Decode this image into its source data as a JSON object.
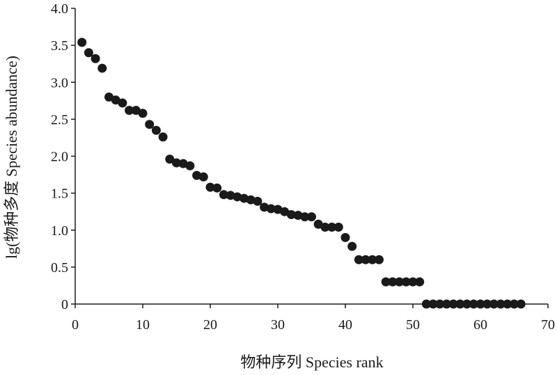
{
  "chart_data": {
    "type": "scatter",
    "title": "",
    "xlabel": "物种序列 Species rank",
    "ylabel": "lg(物种多度 Species abundance)",
    "xlim": [
      0,
      70
    ],
    "ylim": [
      0,
      4.0
    ],
    "x_ticks": [
      0,
      10,
      20,
      30,
      40,
      50,
      60,
      70
    ],
    "x_tick_labels": [
      "0",
      "10",
      "20",
      "30",
      "40",
      "50",
      "60",
      "70"
    ],
    "y_ticks": [
      0,
      0.5,
      1.0,
      1.5,
      2.0,
      2.5,
      3.0,
      3.5,
      4.0
    ],
    "y_tick_labels": [
      "0",
      "0.5",
      "1.0",
      "1.5",
      "2.0",
      "2.5",
      "3.0",
      "3.5",
      "4.0"
    ],
    "grid": false,
    "legend": "none",
    "series": [
      {
        "x": [
          1,
          2,
          3,
          4,
          5,
          6,
          7,
          8,
          9,
          10,
          11,
          12,
          13,
          14,
          15,
          16,
          17,
          18,
          19,
          20,
          21,
          22,
          23,
          24,
          25,
          26,
          27,
          28,
          29,
          30,
          31,
          32,
          33,
          34,
          35,
          36,
          37,
          38,
          39,
          40,
          41,
          42,
          43,
          44,
          45,
          46,
          47,
          48,
          49,
          50,
          51,
          52,
          53,
          54,
          55,
          56,
          57,
          58,
          59,
          60,
          61,
          62,
          63,
          64,
          65,
          66
        ],
        "y": [
          3.54,
          3.4,
          3.32,
          3.19,
          2.8,
          2.76,
          2.72,
          2.62,
          2.62,
          2.58,
          2.43,
          2.35,
          2.26,
          1.96,
          1.91,
          1.9,
          1.87,
          1.74,
          1.72,
          1.58,
          1.57,
          1.48,
          1.47,
          1.45,
          1.43,
          1.41,
          1.39,
          1.31,
          1.29,
          1.28,
          1.25,
          1.21,
          1.2,
          1.18,
          1.18,
          1.08,
          1.04,
          1.04,
          1.04,
          0.9,
          0.78,
          0.6,
          0.6,
          0.6,
          0.6,
          0.3,
          0.3,
          0.3,
          0.3,
          0.3,
          0.3,
          0,
          0,
          0,
          0,
          0,
          0,
          0,
          0,
          0,
          0,
          0,
          0,
          0,
          0,
          0
        ]
      }
    ],
    "color": "#1a1a1a"
  }
}
